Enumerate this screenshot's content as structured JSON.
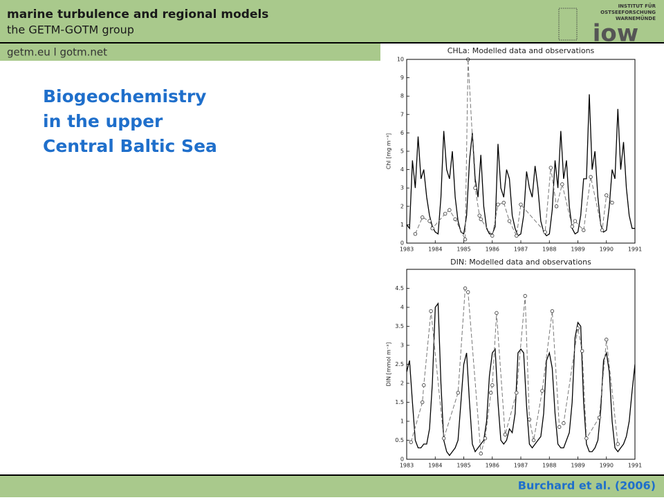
{
  "header": {
    "title": "marine turbulence and regional models",
    "subtitle": "the GETM-GOTM group",
    "links": "getm.eu  l  gotm.net",
    "logo": {
      "line1": "INSTITUT FÜR",
      "line2": "OSTSEEFORSCHUNG",
      "line3": "WARNEMÜNDE",
      "mark": "iow"
    }
  },
  "heading": [
    "Biogeochemistry",
    "in the upper",
    "Central Baltic Sea"
  ],
  "citation": "Burchard et al. (2006)",
  "chart_data": [
    {
      "type": "line",
      "title": "CHLa: Modelled data and observations",
      "y_label": "Chl [mg m⁻³]",
      "xlim": [
        1983,
        1991
      ],
      "xticks": [
        1983,
        1984,
        1985,
        1986,
        1987,
        1988,
        1989,
        1990,
        1991
      ],
      "ylim": [
        0,
        10
      ],
      "yticks": [
        0,
        1,
        2,
        3,
        4,
        5,
        6,
        7,
        8,
        9,
        10
      ],
      "series": [
        {
          "color": "#000000",
          "line_style": "solid",
          "x": [
            1983.0,
            1983.1,
            1983.2,
            1983.3,
            1983.4,
            1983.5,
            1983.6,
            1983.7,
            1983.8,
            1983.9,
            1984.0,
            1984.1,
            1984.2,
            1984.3,
            1984.4,
            1984.5,
            1984.6,
            1984.7,
            1984.8,
            1984.9,
            1985.0,
            1985.1,
            1985.2,
            1985.3,
            1985.4,
            1985.5,
            1985.6,
            1985.7,
            1985.8,
            1985.9,
            1986.0,
            1986.1,
            1986.2,
            1986.3,
            1986.4,
            1986.5,
            1986.6,
            1986.7,
            1986.8,
            1986.9,
            1987.0,
            1987.1,
            1987.2,
            1987.3,
            1987.4,
            1987.5,
            1987.6,
            1987.7,
            1987.8,
            1987.9,
            1988.0,
            1988.1,
            1988.2,
            1988.3,
            1988.4,
            1988.5,
            1988.6,
            1988.7,
            1988.8,
            1988.9,
            1989.0,
            1989.1,
            1989.2,
            1989.3,
            1989.4,
            1989.5,
            1989.6,
            1989.7,
            1989.8,
            1989.9,
            1990.0,
            1990.1,
            1990.2,
            1990.3,
            1990.4,
            1990.5,
            1990.6,
            1990.7,
            1990.8,
            1990.9,
            1991.0
          ],
          "values": [
            1.0,
            0.8,
            4.5,
            3.0,
            5.8,
            3.5,
            4.0,
            2.5,
            1.5,
            0.9,
            0.6,
            0.5,
            2.5,
            6.1,
            4.0,
            3.5,
            5.0,
            2.5,
            1.2,
            0.6,
            0.5,
            1.5,
            4.5,
            6.0,
            3.5,
            2.5,
            4.8,
            2.0,
            0.8,
            0.5,
            0.5,
            0.9,
            5.4,
            3.0,
            2.5,
            4.0,
            3.5,
            1.5,
            0.8,
            0.4,
            0.5,
            1.5,
            3.9,
            3.0,
            2.5,
            4.2,
            3.0,
            1.2,
            0.6,
            0.4,
            0.5,
            1.8,
            4.5,
            3.0,
            6.1,
            3.5,
            4.5,
            2.0,
            0.8,
            0.5,
            0.6,
            1.5,
            3.5,
            3.5,
            8.1,
            4.0,
            5.0,
            2.5,
            1.0,
            0.6,
            0.7,
            2.0,
            4.0,
            3.5,
            7.3,
            4.0,
            5.5,
            3.0,
            1.5,
            0.8,
            0.8
          ]
        },
        {
          "color": "#777777",
          "line_style": "dashed",
          "marker": "circle",
          "x": [
            1983.3,
            1983.55,
            1983.8,
            1983.9,
            1984.35,
            1984.5,
            1984.7,
            1985.05,
            1985.15,
            1985.4,
            1985.55,
            1985.6,
            1986.0,
            1986.2,
            1986.4,
            1986.6,
            1986.85,
            1987.0,
            1987.85,
            1988.05,
            1988.25,
            1988.45,
            1988.8,
            1988.9,
            1989.2,
            1989.45,
            1989.85,
            1990.0,
            1990.2
          ],
          "values": [
            0.5,
            1.4,
            1.2,
            0.8,
            1.6,
            1.8,
            1.3,
            0.2,
            10,
            3.0,
            1.5,
            1.3,
            0.4,
            2.1,
            2.2,
            1.2,
            0.4,
            2.1,
            0.6,
            4.1,
            2.0,
            3.2,
            0.9,
            1.2,
            0.7,
            3.6,
            0.7,
            2.6,
            2.2
          ]
        }
      ]
    },
    {
      "type": "line",
      "title": "DIN: Modelled data and observations",
      "y_label": "DIN [mmol m⁻³]",
      "xlim": [
        1983,
        1991
      ],
      "xticks": [
        1983,
        1984,
        1985,
        1986,
        1987,
        1988,
        1989,
        1990,
        1991
      ],
      "ylim": [
        0,
        5
      ],
      "yticks": [
        0,
        0.5,
        1,
        1.5,
        2,
        2.5,
        3,
        3.5,
        4,
        4.5
      ],
      "series": [
        {
          "color": "#000000",
          "line_style": "solid",
          "x": [
            1983.0,
            1983.1,
            1983.2,
            1983.3,
            1983.4,
            1983.5,
            1983.6,
            1983.7,
            1983.8,
            1983.9,
            1984.0,
            1984.1,
            1984.2,
            1984.3,
            1984.4,
            1984.5,
            1984.6,
            1984.7,
            1984.8,
            1984.9,
            1985.0,
            1985.1,
            1985.2,
            1985.3,
            1985.4,
            1985.5,
            1985.6,
            1985.7,
            1985.8,
            1985.9,
            1986.0,
            1986.1,
            1986.2,
            1986.3,
            1986.4,
            1986.5,
            1986.6,
            1986.7,
            1986.8,
            1986.9,
            1987.0,
            1987.1,
            1987.2,
            1987.3,
            1987.4,
            1987.5,
            1987.6,
            1987.7,
            1987.8,
            1987.9,
            1988.0,
            1988.1,
            1988.2,
            1988.3,
            1988.4,
            1988.5,
            1988.6,
            1988.7,
            1988.8,
            1988.9,
            1989.0,
            1989.1,
            1989.2,
            1989.3,
            1989.4,
            1989.5,
            1989.6,
            1989.7,
            1989.8,
            1989.9,
            1990.0,
            1990.1,
            1990.2,
            1990.3,
            1990.4,
            1990.5,
            1990.6,
            1990.7,
            1990.8,
            1990.9,
            1991.0
          ],
          "values": [
            2.3,
            2.6,
            1.5,
            0.5,
            0.3,
            0.3,
            0.4,
            0.4,
            0.8,
            2.0,
            4.0,
            4.1,
            2.0,
            0.5,
            0.2,
            0.1,
            0.2,
            0.3,
            0.5,
            1.5,
            2.5,
            2.8,
            1.5,
            0.4,
            0.2,
            0.3,
            0.4,
            0.5,
            1.0,
            2.2,
            2.8,
            2.9,
            1.5,
            0.5,
            0.4,
            0.5,
            0.8,
            0.7,
            1.2,
            2.8,
            2.9,
            2.8,
            1.4,
            0.4,
            0.3,
            0.4,
            0.5,
            0.6,
            1.2,
            2.6,
            2.8,
            2.4,
            1.2,
            0.4,
            0.3,
            0.3,
            0.5,
            0.7,
            1.5,
            3.2,
            3.6,
            3.5,
            1.5,
            0.4,
            0.2,
            0.2,
            0.3,
            0.5,
            1.3,
            2.6,
            2.8,
            2.3,
            1.0,
            0.3,
            0.2,
            0.3,
            0.4,
            0.6,
            1.0,
            1.8,
            2.5
          ]
        },
        {
          "color": "#777777",
          "line_style": "dashed",
          "marker": "circle",
          "x": [
            1983.15,
            1983.55,
            1983.6,
            1983.85,
            1984.3,
            1984.8,
            1985.05,
            1985.15,
            1985.6,
            1985.75,
            1985.95,
            1986.0,
            1986.15,
            1986.45,
            1986.85,
            1987.15,
            1987.3,
            1987.45,
            1987.75,
            1988.1,
            1988.35,
            1988.5,
            1989.0,
            1989.15,
            1989.3,
            1989.75,
            1990.0,
            1990.4
          ],
          "values": [
            0.45,
            1.5,
            1.95,
            3.9,
            0.55,
            1.75,
            4.5,
            4.4,
            0.15,
            0.55,
            1.75,
            1.95,
            3.85,
            0.65,
            1.75,
            4.3,
            1.05,
            0.5,
            1.8,
            3.9,
            0.85,
            0.95,
            3.45,
            2.85,
            0.55,
            1.1,
            3.15,
            0.4
          ]
        }
      ]
    }
  ]
}
